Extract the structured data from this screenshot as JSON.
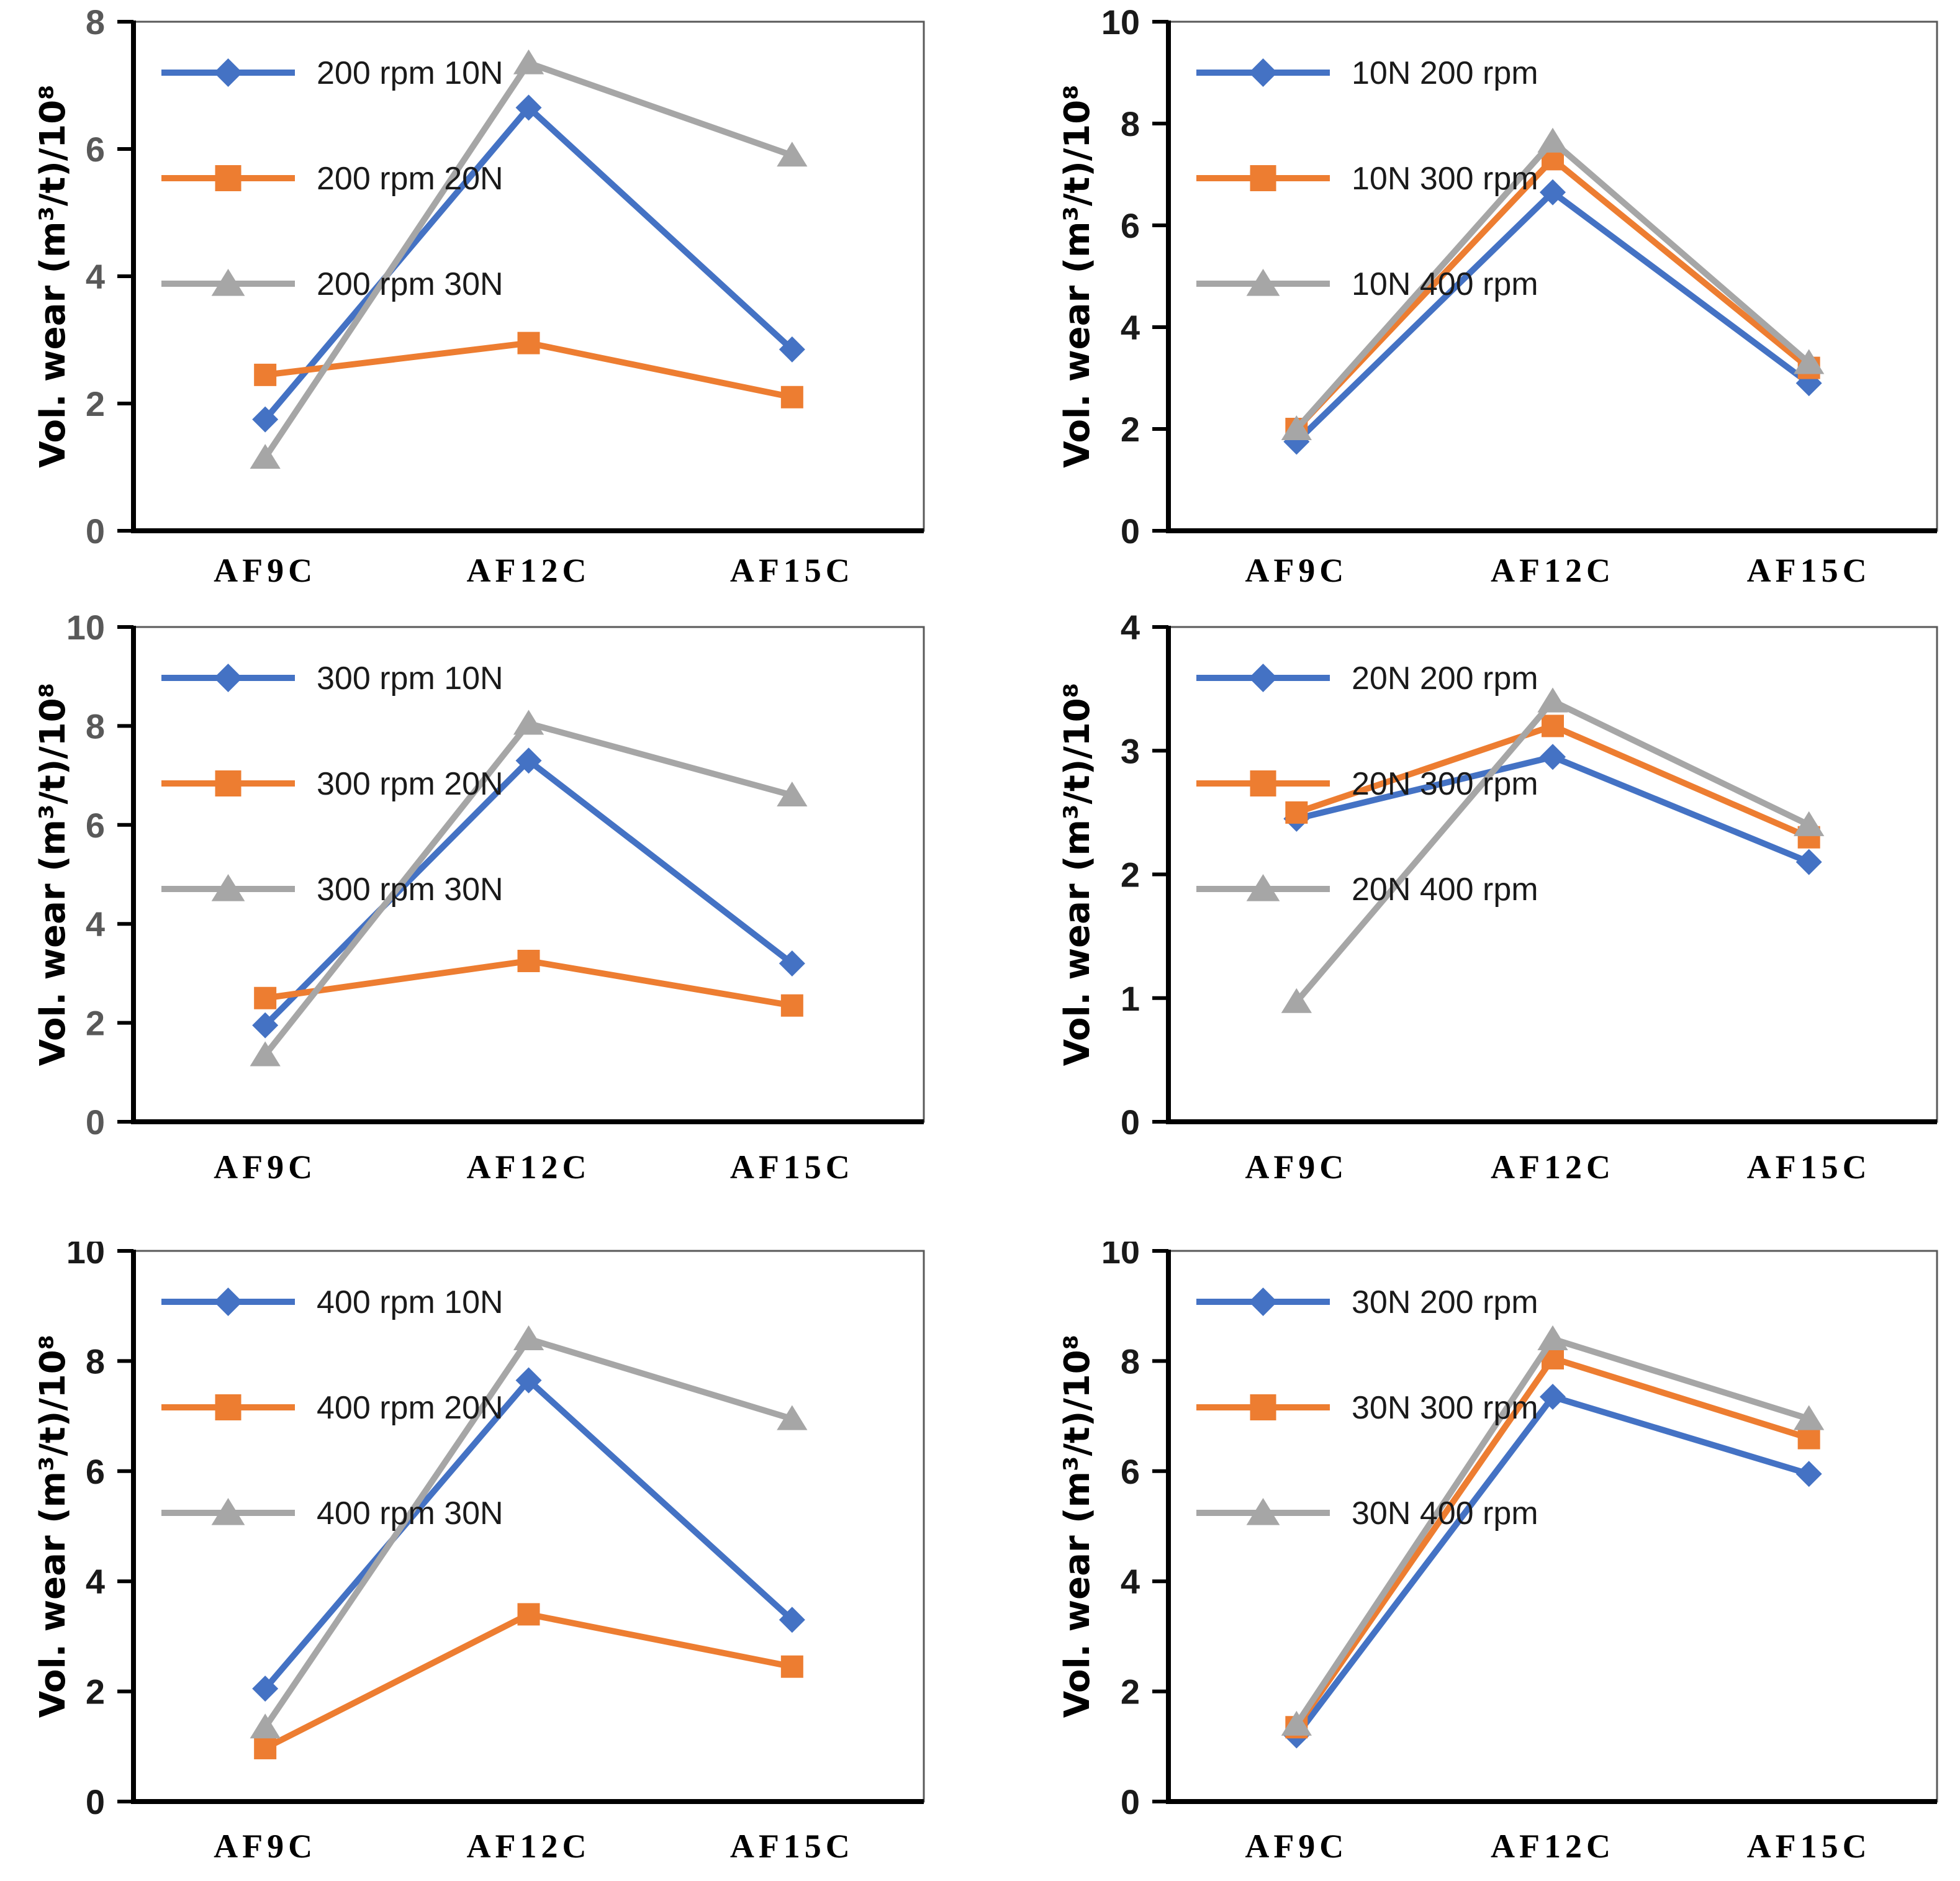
{
  "figure": {
    "background": "#ffffff",
    "panels_layout": "2 columns x 3 rows",
    "palette": {
      "blue": "#4472C4",
      "orange": "#ED7D31",
      "gray": "#A6A6A6",
      "axis": "#000000",
      "frame": "#595959"
    }
  },
  "chart_data": [
    {
      "type": "line",
      "position": "top-left",
      "title": "",
      "xlabel": "",
      "ylabel": "Vol. wear (m³/t)/10⁸",
      "ylim": [
        0,
        8
      ],
      "yticks": [
        0,
        2,
        4,
        6,
        8
      ],
      "tick_label_color": "#595959",
      "grid": false,
      "legend_position": "top-left-inside",
      "categories": [
        "AF9C",
        "AF12C",
        "AF15C"
      ],
      "series": [
        {
          "name": "200 rpm 10N",
          "color": "#4472C4",
          "marker": "diamond",
          "values": [
            1.75,
            6.65,
            2.85
          ]
        },
        {
          "name": "200 rpm 20N",
          "color": "#ED7D31",
          "marker": "square",
          "values": [
            2.45,
            2.95,
            2.1
          ]
        },
        {
          "name": "200 rpm 30N",
          "color": "#A6A6A6",
          "marker": "triangle",
          "values": [
            1.15,
            7.35,
            5.9
          ]
        }
      ]
    },
    {
      "type": "line",
      "position": "top-right",
      "title": "",
      "xlabel": "",
      "ylabel": "Vol. wear (m³/t)/10⁸",
      "ylim": [
        0,
        10
      ],
      "yticks": [
        0,
        2,
        4,
        6,
        8,
        10
      ],
      "tick_label_color": "#1a1a1a",
      "grid": false,
      "legend_position": "top-left-inside",
      "categories": [
        "AF9C",
        "AF12C",
        "AF15C"
      ],
      "series": [
        {
          "name": "10N 200 rpm",
          "color": "#4472C4",
          "marker": "diamond",
          "values": [
            1.75,
            6.65,
            2.9
          ]
        },
        {
          "name": "10N 300 rpm",
          "color": "#ED7D31",
          "marker": "square",
          "values": [
            2.0,
            7.3,
            3.2
          ]
        },
        {
          "name": "10N 400 rpm",
          "color": "#A6A6A6",
          "marker": "triangle",
          "values": [
            2.0,
            7.65,
            3.3
          ]
        }
      ]
    },
    {
      "type": "line",
      "position": "middle-left",
      "title": "",
      "xlabel": "",
      "ylabel": "Vol. wear (m³/t)/10⁸",
      "ylim": [
        0,
        10
      ],
      "yticks": [
        0,
        2,
        4,
        6,
        8,
        10
      ],
      "tick_label_color": "#595959",
      "grid": false,
      "legend_position": "top-left-inside",
      "categories": [
        "AF9C",
        "AF12C",
        "AF15C"
      ],
      "series": [
        {
          "name": "300 rpm 10N",
          "color": "#4472C4",
          "marker": "diamond",
          "values": [
            1.95,
            7.3,
            3.2
          ]
        },
        {
          "name": "300 rpm 20N",
          "color": "#ED7D31",
          "marker": "square",
          "values": [
            2.5,
            3.25,
            2.35
          ]
        },
        {
          "name": "300 rpm 30N",
          "color": "#A6A6A6",
          "marker": "triangle",
          "values": [
            1.35,
            8.05,
            6.6
          ]
        }
      ]
    },
    {
      "type": "line",
      "position": "middle-right",
      "title": "",
      "xlabel": "",
      "ylabel": "Vol. wear (m³/t)/10⁸",
      "ylim": [
        0,
        4
      ],
      "yticks": [
        0,
        1,
        2,
        3,
        4
      ],
      "tick_label_color": "#1a1a1a",
      "grid": false,
      "legend_position": "top-left-inside",
      "categories": [
        "AF9C",
        "AF12C",
        "AF15C"
      ],
      "series": [
        {
          "name": "20N 200 rpm",
          "color": "#4472C4",
          "marker": "diamond",
          "values": [
            2.45,
            2.95,
            2.1
          ]
        },
        {
          "name": "20N 300 rpm",
          "color": "#ED7D31",
          "marker": "square",
          "values": [
            2.5,
            3.2,
            2.3
          ]
        },
        {
          "name": "20N 400 rpm",
          "color": "#A6A6A6",
          "marker": "triangle",
          "values": [
            0.97,
            3.4,
            2.4
          ]
        }
      ]
    },
    {
      "type": "line",
      "position": "bottom-left",
      "title": "",
      "xlabel": "",
      "ylabel": "Vol. wear (m³/t)/10⁸",
      "ylim": [
        0,
        10
      ],
      "yticks": [
        0,
        2,
        4,
        6,
        8,
        10
      ],
      "tick_label_color": "#1a1a1a",
      "grid": false,
      "legend_position": "top-left-inside",
      "categories": [
        "AF9C",
        "AF12C",
        "AF15C"
      ],
      "series": [
        {
          "name": "400 rpm 10N",
          "color": "#4472C4",
          "marker": "diamond",
          "values": [
            2.05,
            7.65,
            3.3
          ]
        },
        {
          "name": "400 rpm 20N",
          "color": "#ED7D31",
          "marker": "square",
          "values": [
            0.97,
            3.4,
            2.45
          ]
        },
        {
          "name": "400 rpm 30N",
          "color": "#A6A6A6",
          "marker": "triangle",
          "values": [
            1.35,
            8.4,
            6.95
          ]
        }
      ]
    },
    {
      "type": "line",
      "position": "bottom-right",
      "title": "",
      "xlabel": "",
      "ylabel": "Vol. wear (m³/t)/10⁸",
      "ylim": [
        0,
        10
      ],
      "yticks": [
        0,
        2,
        4,
        6,
        8,
        10
      ],
      "tick_label_color": "#1a1a1a",
      "grid": false,
      "legend_position": "top-left-inside",
      "categories": [
        "AF9C",
        "AF12C",
        "AF15C"
      ],
      "series": [
        {
          "name": "30N 200 rpm",
          "color": "#4472C4",
          "marker": "diamond",
          "values": [
            1.2,
            7.35,
            5.95
          ]
        },
        {
          "name": "30N 300 rpm",
          "color": "#ED7D31",
          "marker": "square",
          "values": [
            1.35,
            8.05,
            6.6
          ]
        },
        {
          "name": "30N 400 rpm",
          "color": "#A6A6A6",
          "marker": "triangle",
          "values": [
            1.4,
            8.4,
            6.95
          ]
        }
      ]
    }
  ]
}
